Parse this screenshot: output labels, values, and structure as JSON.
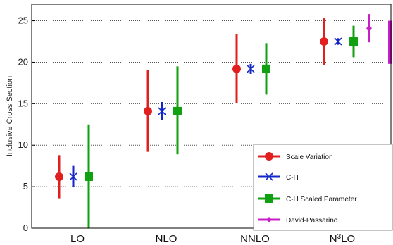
{
  "chart_data": {
    "type": "errorbar",
    "title": "",
    "xlabel": "",
    "ylabel": "Inclusive Cross Section",
    "ylim": [
      0,
      27
    ],
    "yticks": [
      0,
      5,
      10,
      15,
      20,
      25
    ],
    "grid": "horizontal-dotted",
    "legend_position": "bottom-right",
    "categories": [
      {
        "prefix": "LO",
        "sup": "",
        "suffix": ""
      },
      {
        "prefix": "NLO",
        "sup": "",
        "suffix": ""
      },
      {
        "prefix": "NNLO",
        "sup": "",
        "suffix": ""
      },
      {
        "prefix": "N",
        "sup": "3",
        "suffix": "LO"
      }
    ],
    "series": [
      {
        "name": "Scale Variation",
        "color": "#e11f1f",
        "marker": "circle",
        "points": [
          {
            "category": 0,
            "y": 6.2,
            "low": 3.6,
            "high": 8.8
          },
          {
            "category": 1,
            "y": 14.1,
            "low": 9.2,
            "high": 19.1
          },
          {
            "category": 2,
            "y": 19.2,
            "low": 15.1,
            "high": 23.4
          },
          {
            "category": 3,
            "y": 22.5,
            "low": 19.7,
            "high": 25.3
          }
        ]
      },
      {
        "name": "C-H",
        "color": "#1426c8",
        "marker": "x",
        "points": [
          {
            "category": 0,
            "y": 6.2,
            "low": 5.0,
            "high": 7.5
          },
          {
            "category": 1,
            "y": 14.1,
            "low": 13.0,
            "high": 15.2
          },
          {
            "category": 2,
            "y": 19.2,
            "low": 18.6,
            "high": 19.8
          },
          {
            "category": 3,
            "y": 22.5,
            "low": 22.1,
            "high": 22.9
          }
        ]
      },
      {
        "name": "C-H Scaled Parameter",
        "color": "#11a011",
        "marker": "square",
        "points": [
          {
            "category": 0,
            "y": 6.2,
            "low": 0.0,
            "high": 12.5
          },
          {
            "category": 1,
            "y": 14.1,
            "low": 8.9,
            "high": 19.5
          },
          {
            "category": 2,
            "y": 19.2,
            "low": 16.1,
            "high": 22.3
          },
          {
            "category": 3,
            "y": 22.5,
            "low": 20.6,
            "high": 24.4
          }
        ]
      },
      {
        "name": "David-Passarino",
        "color": "#c81ec8",
        "marker": "diamond",
        "points": [
          {
            "category": 3,
            "y": 24.1,
            "low": 22.4,
            "high": 25.8
          }
        ]
      }
    ],
    "extra_band": {
      "category": 3,
      "low": 19.8,
      "high": 25.0,
      "color": "#c81ec8"
    }
  }
}
